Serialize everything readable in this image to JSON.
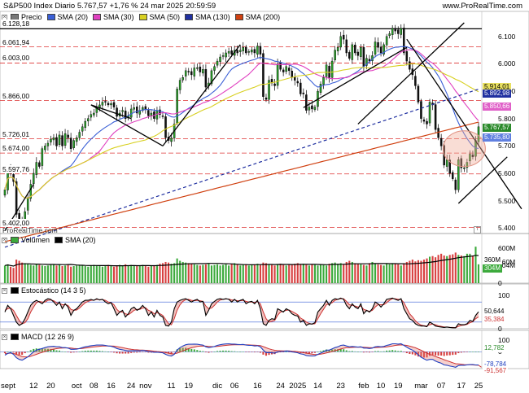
{
  "header": {
    "title": "S&P500 Index Diario 5.767,57 +1,76 % 24 mar 2025 20:59:59",
    "link": "www.ProRealTime.com"
  },
  "price_panel": {
    "legend": [
      {
        "label": "Precio",
        "color": "#777777"
      },
      {
        "label": "SMA (20)",
        "color": "#3a5fd6"
      },
      {
        "label": "SMA (30)",
        "color": "#e040c0"
      },
      {
        "label": "SMA (50)",
        "color": "#d8d020"
      },
      {
        "label": "SMA (130)",
        "color": "#2030a0"
      },
      {
        "label": "SMA (200)",
        "color": "#d04010"
      }
    ],
    "levels": [
      "6.128,18",
      "6.061,94",
      "6.003,00",
      "5.866,00",
      "5.726,01",
      "5.674,00",
      "5.597,76",
      "5.402,00"
    ],
    "axis": [
      "6.100",
      "6.000",
      "5.900",
      "5.800",
      "5.700",
      "5.600",
      "5.500",
      "5.400"
    ],
    "tags": [
      {
        "text": "5.914,01",
        "bg": "#e8e060",
        "fg": "#000000"
      },
      {
        "text": "5.892,98",
        "bg": "#2030a0",
        "fg": "#ffffff"
      },
      {
        "text": "5.850,66",
        "bg": "#e060c8",
        "fg": "#ffffff"
      },
      {
        "text": "5.767,57",
        "bg": "#2a8a2a",
        "fg": "#ffffff"
      },
      {
        "text": "5.735,80",
        "bg": "#6080e0",
        "fg": "#ffffff"
      }
    ],
    "watermark": "ProRealTime.com",
    "info_icon": "i"
  },
  "volume_panel": {
    "legend": [
      {
        "label": "Volumen",
        "color": "#3caa3c"
      },
      {
        "label": "SMA (20)",
        "color": "#000000"
      }
    ],
    "axis": [
      "600M",
      "360M",
      "304M",
      "0"
    ],
    "tags": [
      {
        "text": "360M",
        "bg": "#ffffff",
        "fg": "#000000"
      },
      {
        "text": "304M",
        "bg": "#3caa3c",
        "fg": "#ffffff"
      }
    ]
  },
  "stoch_panel": {
    "legend": [
      {
        "label": "Estocástico (14 3 5)",
        "color": "#000000"
      }
    ],
    "axis": [
      "100",
      "0"
    ],
    "tags": [
      {
        "text": "50,644",
        "bg": "#ffffff",
        "fg": "#000000"
      },
      {
        "text": "35,384",
        "bg": "#ffffff",
        "fg": "#cc3333"
      }
    ]
  },
  "macd_panel": {
    "legend": [
      {
        "label": "MACD (12 26 9)",
        "color": "#000000"
      }
    ],
    "axis": [
      "100",
      "0"
    ],
    "tags": [
      {
        "text": "12,782",
        "bg": "#ffffff",
        "fg": "#2a8a2a"
      },
      {
        "text": "-78,784",
        "bg": "#ffffff",
        "fg": "#2040c0"
      },
      {
        "text": "-91,567",
        "bg": "#ffffff",
        "fg": "#cc3333"
      }
    ]
  },
  "x_axis": [
    "sept",
    "12",
    "20",
    "oct",
    "08",
    "16",
    "24",
    "nov",
    "11",
    "19",
    "dic",
    "06",
    "16",
    "24",
    "2025",
    "14",
    "23",
    "feb",
    "10",
    "19",
    "mar",
    "07",
    "17",
    "25"
  ],
  "chart_data": {
    "type": "candlestick",
    "title": "S&P500 Index Diario",
    "ylim": [
      5380,
      6150
    ],
    "horizontal_levels": [
      6128.18,
      6061.94,
      6003.0,
      5866.0,
      5726.01,
      5674.0,
      5597.76,
      5402.0
    ],
    "last_close": 5767.57,
    "sma_last": {
      "SMA (50)": 5914.01,
      "SMA (130)": 5892.98,
      "SMA (30)": 5850.66,
      "SMA (20)": 5735.8
    },
    "close": [
      5540,
      5620,
      5600,
      5570,
      5450,
      5430,
      5410,
      5460,
      5510,
      5560,
      5600,
      5640,
      5625,
      5690,
      5700,
      5710,
      5725,
      5730,
      5700,
      5740,
      5700,
      5745,
      5730,
      5690,
      5720,
      5730,
      5750,
      5770,
      5790,
      5800,
      5815,
      5820,
      5842,
      5850,
      5860,
      5860,
      5850,
      5855,
      5842,
      5808,
      5820,
      5830,
      5800,
      5810,
      5835,
      5840,
      5820,
      5830,
      5840,
      5833,
      5810,
      5820,
      5800,
      5830,
      5815,
      5808,
      5730,
      5720,
      5729,
      5780,
      5908,
      5940,
      5950,
      5975,
      5970,
      5960,
      5985,
      5986,
      5970,
      5980,
      5915,
      5930,
      5975,
      5990,
      6010,
      6025,
      6030,
      6040,
      6045,
      6035,
      6050,
      6040,
      6050,
      6060,
      6040,
      6045,
      6051,
      6040,
      6065,
      6035,
      5880,
      5870,
      5940,
      5930,
      5920,
      6000,
      5980,
      5970,
      5990,
      5975,
      5950,
      5940,
      5930,
      5890,
      5890,
      5830,
      5842,
      5835,
      5842,
      5900,
      5926,
      5950,
      5996,
      5950,
      6010,
      6050,
      6060,
      6100,
      6090,
      6040,
      6020,
      6070,
      6040,
      6030,
      6060,
      5990,
      6020,
      6010,
      6030,
      6080,
      6060,
      6040,
      6070,
      6100,
      6110,
      6130,
      6120,
      6110,
      6130,
      6040,
      6010,
      5980,
      5960,
      5920,
      5860,
      5800,
      5790,
      5780,
      5860,
      5850,
      5760,
      5730,
      5700,
      5630,
      5650,
      5600,
      5580,
      5540,
      5650,
      5620,
      5620,
      5640,
      5670,
      5660,
      5720,
      5770
    ],
    "volume": [
      300,
      320,
      280,
      260,
      400,
      380,
      350,
      340,
      330,
      310,
      300,
      320,
      310,
      300,
      290,
      300,
      310,
      320,
      300,
      310,
      290,
      300,
      310,
      280,
      290,
      300,
      310,
      300,
      290,
      280,
      300,
      310,
      300,
      290,
      280,
      300,
      310,
      290,
      280,
      300,
      310,
      300,
      320,
      300,
      310,
      300,
      290,
      300,
      310,
      300,
      280,
      290,
      300,
      310,
      330,
      340,
      360,
      350,
      330,
      340,
      420,
      380,
      360,
      350,
      340,
      330,
      320,
      310,
      300,
      310,
      320,
      330,
      300,
      310,
      320,
      300,
      310,
      320,
      300,
      330,
      340,
      320,
      300,
      310,
      320,
      300,
      310,
      320,
      330,
      310,
      350,
      340,
      320,
      310,
      300,
      320,
      330,
      310,
      300,
      310,
      320,
      330,
      340,
      320,
      330,
      310,
      300,
      320,
      310,
      300,
      320,
      310,
      300,
      330,
      340,
      350,
      330,
      340,
      320,
      360,
      380,
      360,
      340,
      330,
      320,
      310,
      300,
      340,
      360,
      330,
      320,
      310,
      300,
      330,
      320,
      340,
      330,
      320,
      300,
      340,
      360,
      380,
      400,
      370,
      390,
      380,
      400,
      420,
      450,
      460,
      440,
      480,
      500,
      470,
      460,
      480,
      490,
      520,
      480,
      470,
      460,
      500,
      500,
      470,
      620,
      320
    ],
    "stochastic": [
      50,
      70,
      60,
      40,
      20,
      10,
      15,
      30,
      50,
      70,
      80,
      85,
      80,
      75,
      85,
      90,
      88,
      80,
      70,
      80,
      60,
      75,
      65,
      40,
      55,
      60,
      70,
      80,
      85,
      85,
      88,
      85,
      90,
      86,
      88,
      80,
      75,
      78,
      60,
      40,
      50,
      55,
      35,
      45,
      60,
      65,
      55,
      60,
      70,
      60,
      40,
      50,
      35,
      55,
      40,
      35,
      10,
      8,
      20,
      60,
      80,
      85,
      88,
      90,
      85,
      80,
      85,
      88,
      80,
      82,
      40,
      55,
      75,
      82,
      88,
      90,
      88,
      90,
      88,
      80,
      88,
      80,
      85,
      88,
      75,
      80,
      82,
      75,
      85,
      60,
      15,
      10,
      25,
      30,
      28,
      60,
      55,
      50,
      60,
      55,
      45,
      40,
      38,
      20,
      25,
      10,
      15,
      14,
      18,
      50,
      60,
      70,
      85,
      70,
      85,
      90,
      88,
      92,
      88,
      70,
      60,
      75,
      65,
      60,
      75,
      45,
      55,
      50,
      60,
      80,
      75,
      65,
      75,
      88,
      90,
      92,
      88,
      85,
      90,
      60,
      45,
      30,
      25,
      15,
      10,
      8,
      8,
      6,
      20,
      15,
      8,
      6,
      5,
      4,
      5,
      4,
      3,
      3,
      15,
      12,
      12,
      15,
      25,
      22,
      40,
      50.64
    ],
    "stoch_signal": [
      55,
      60,
      62,
      55,
      40,
      25,
      15,
      18,
      30,
      50,
      65,
      78,
      82,
      80,
      80,
      85,
      86,
      84,
      78,
      76,
      72,
      72,
      70,
      58,
      55,
      56,
      62,
      70,
      78,
      82,
      85,
      86,
      88,
      87,
      87,
      85,
      80,
      78,
      72,
      58,
      50,
      50,
      45,
      42,
      48,
      55,
      58,
      58,
      62,
      63,
      55,
      52,
      45,
      48,
      45,
      40,
      28,
      15,
      12,
      30,
      55,
      72,
      82,
      87,
      88,
      85,
      84,
      85,
      84,
      82,
      68,
      60,
      62,
      70,
      80,
      86,
      88,
      89,
      89,
      86,
      86,
      84,
      84,
      85,
      82,
      80,
      80,
      79,
      81,
      75,
      50,
      30,
      20,
      22,
      25,
      40,
      50,
      52,
      55,
      56,
      52,
      47,
      42,
      32,
      27,
      20,
      16,
      14,
      15,
      30,
      45,
      58,
      72,
      75,
      78,
      85,
      88,
      90,
      90,
      82,
      72,
      70,
      68,
      65,
      68,
      58,
      55,
      52,
      55,
      65,
      72,
      72,
      72,
      78,
      85,
      90,
      90,
      88,
      88,
      78,
      62,
      45,
      35,
      24,
      16,
      11,
      9,
      8,
      12,
      14,
      12,
      9,
      7,
      5,
      5,
      4,
      4,
      3,
      7,
      10,
      11,
      13,
      18,
      21,
      30,
      35.38
    ],
    "macd": [
      -20,
      -10,
      -5,
      -15,
      -35,
      -45,
      -50,
      -40,
      -30,
      -15,
      0,
      10,
      15,
      20,
      25,
      30,
      32,
      33,
      30,
      30,
      25,
      25,
      22,
      15,
      15,
      16,
      20,
      25,
      30,
      33,
      36,
      38,
      40,
      40,
      40,
      38,
      35,
      33,
      28,
      20,
      15,
      12,
      8,
      5,
      6,
      7,
      6,
      6,
      8,
      6,
      2,
      0,
      -3,
      -2,
      -4,
      -6,
      -15,
      -22,
      -25,
      -15,
      10,
      25,
      35,
      42,
      45,
      45,
      46,
      45,
      42,
      40,
      30,
      25,
      28,
      32,
      38,
      42,
      45,
      47,
      48,
      46,
      46,
      44,
      43,
      44,
      40,
      38,
      38,
      35,
      36,
      30,
      10,
      -5,
      -5,
      -6,
      -8,
      0,
      2,
      2,
      5,
      4,
      0,
      -3,
      -6,
      -12,
      -15,
      -22,
      -24,
      -25,
      -24,
      -15,
      -8,
      0,
      10,
      10,
      18,
      25,
      30,
      38,
      40,
      35,
      30,
      32,
      30,
      28,
      30,
      22,
      22,
      20,
      22,
      30,
      32,
      30,
      32,
      38,
      42,
      48,
      48,
      46,
      48,
      38,
      28,
      18,
      10,
      -2,
      -18,
      -32,
      -42,
      -50,
      -45,
      -45,
      -55,
      -62,
      -68,
      -78,
      -80,
      -85,
      -88,
      -92,
      -82,
      -80,
      -80,
      -78,
      -76,
      -76,
      -78,
      -78.78
    ],
    "macd_signal": [
      -10,
      -10,
      -8,
      -10,
      -15,
      -22,
      -28,
      -30,
      -30,
      -27,
      -21,
      -15,
      -9,
      -3,
      2,
      8,
      12,
      16,
      19,
      21,
      22,
      23,
      23,
      22,
      20,
      19,
      19,
      20,
      22,
      24,
      27,
      29,
      31,
      33,
      35,
      35,
      35,
      35,
      34,
      31,
      28,
      25,
      21,
      18,
      15,
      13,
      12,
      10,
      10,
      9,
      8,
      6,
      4,
      2,
      1,
      -1,
      -4,
      -8,
      -12,
      -12,
      -8,
      -2,
      5,
      12,
      19,
      24,
      28,
      32,
      34,
      35,
      34,
      32,
      31,
      31,
      32,
      34,
      36,
      38,
      40,
      41,
      42,
      42,
      42,
      42,
      42,
      41,
      40,
      39,
      38,
      37,
      31,
      24,
      18,
      13,
      9,
      7,
      6,
      5,
      5,
      5,
      4,
      3,
      1,
      -2,
      -5,
      -8,
      -11,
      -14,
      -16,
      -16,
      -14,
      -11,
      -7,
      -3,
      1,
      6,
      11,
      17,
      21,
      24,
      25,
      26,
      27,
      27,
      28,
      27,
      26,
      25,
      24,
      25,
      26,
      27,
      28,
      29,
      32,
      35,
      38,
      40,
      41,
      40,
      38,
      34,
      29,
      24,
      17,
      9,
      1,
      -8,
      -15,
      -21,
      -28,
      -34,
      -40,
      -47,
      -53,
      -59,
      -65,
      -71,
      -72,
      -74,
      -76,
      -77,
      -77,
      -78,
      -79,
      -80,
      -91.567
    ]
  }
}
